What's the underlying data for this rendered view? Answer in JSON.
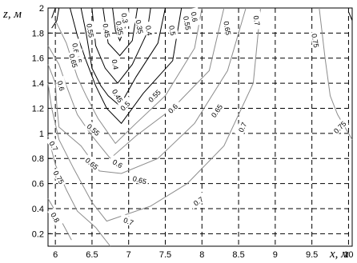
{
  "chart_data": {
    "type": "contour",
    "xlabel": "x, м",
    "ylabel": "z, м",
    "xlim": [
      5.9,
      10.05
    ],
    "ylim": [
      0.1,
      2.0
    ],
    "xticks": [
      "6",
      "6.5",
      "7",
      "7.5",
      "8",
      "8.5",
      "9",
      "9.5",
      "10"
    ],
    "yticks": [
      "0.2",
      "0.4",
      "0.6",
      "0.8",
      "1",
      "1.2",
      "1.4",
      "1.6",
      "1.8",
      "2"
    ],
    "grid": "dashed",
    "contours": [
      {
        "level": "0.3",
        "color": "black",
        "points": [
          [
            6.78,
            2.0
          ],
          [
            6.82,
            1.82
          ],
          [
            6.88,
            1.74
          ],
          [
            6.96,
            1.86
          ],
          [
            7.0,
            2.0
          ]
        ]
      },
      {
        "level": "0.35",
        "color": "black",
        "points": [
          [
            6.65,
            2.0
          ],
          [
            6.72,
            1.72
          ],
          [
            6.88,
            1.62
          ],
          [
            7.05,
            1.74
          ],
          [
            7.12,
            2.0
          ]
        ]
      },
      {
        "level": "0.4",
        "color": "black",
        "points": [
          [
            6.5,
            2.0
          ],
          [
            6.55,
            1.7
          ],
          [
            6.68,
            1.52
          ],
          [
            6.85,
            1.4
          ],
          [
            7.05,
            1.55
          ],
          [
            7.25,
            1.8
          ],
          [
            7.3,
            2.0
          ]
        ]
      },
      {
        "level": "0.45",
        "color": "black",
        "points": [
          [
            6.35,
            2.0
          ],
          [
            6.42,
            1.8
          ],
          [
            6.5,
            1.52
          ],
          [
            6.62,
            1.38
          ],
          [
            6.72,
            1.3
          ],
          [
            6.88,
            1.22
          ],
          [
            7.1,
            1.45
          ],
          [
            7.4,
            1.72
          ],
          [
            7.5,
            2.0
          ]
        ]
      },
      {
        "level": "0.5",
        "color": "black",
        "points": [
          [
            6.2,
            2.0
          ],
          [
            6.3,
            1.78
          ],
          [
            6.42,
            1.58
          ],
          [
            6.55,
            1.38
          ],
          [
            6.7,
            1.2
          ],
          [
            6.9,
            1.08
          ],
          [
            7.2,
            1.32
          ],
          [
            7.6,
            1.58
          ],
          [
            7.72,
            2.0
          ]
        ]
      },
      {
        "level": "0.55",
        "color": "gray",
        "points": [
          [
            6.0,
            1.9
          ],
          [
            6.15,
            1.72
          ],
          [
            6.3,
            1.45
          ],
          [
            6.42,
            1.3
          ],
          [
            6.58,
            1.12
          ],
          [
            6.82,
            0.92
          ],
          [
            7.1,
            1.08
          ],
          [
            7.5,
            1.3
          ],
          [
            7.9,
            1.68
          ],
          [
            8.0,
            2.0
          ]
        ]
      },
      {
        "level": "0.6",
        "color": "gray",
        "points": [
          [
            5.9,
            1.7
          ],
          [
            6.05,
            1.55
          ],
          [
            6.15,
            1.38
          ],
          [
            6.3,
            1.15
          ],
          [
            6.5,
            0.98
          ],
          [
            6.75,
            0.8
          ],
          [
            7.1,
            0.98
          ],
          [
            7.6,
            1.2
          ],
          [
            8.1,
            1.5
          ],
          [
            8.3,
            2.0
          ]
        ]
      },
      {
        "level": "0.65",
        "color": "gray",
        "points": [
          [
            5.9,
            1.55
          ],
          [
            6.0,
            1.4
          ],
          [
            6.02,
            1.22
          ],
          [
            6.05,
            1.05
          ],
          [
            6.35,
            0.9
          ],
          [
            6.6,
            0.7
          ],
          [
            6.9,
            0.68
          ],
          [
            7.4,
            0.8
          ],
          [
            7.9,
            1.08
          ],
          [
            8.35,
            1.5
          ],
          [
            8.6,
            2.0
          ]
        ]
      },
      {
        "level": "0.7",
        "color": "gray",
        "points": [
          [
            5.9,
            1.4
          ],
          [
            5.95,
            1.2
          ],
          [
            6.05,
            0.95
          ],
          [
            6.25,
            0.72
          ],
          [
            6.5,
            0.45
          ],
          [
            6.7,
            0.3
          ],
          [
            7.3,
            0.42
          ],
          [
            7.8,
            0.6
          ],
          [
            8.3,
            0.9
          ],
          [
            8.7,
            1.4
          ],
          [
            8.8,
            2.0
          ]
        ]
      },
      {
        "level": "0.75",
        "color": "gray",
        "points": [
          [
            5.9,
            0.98
          ],
          [
            6.0,
            0.75
          ],
          [
            6.15,
            0.55
          ],
          [
            6.3,
            0.38
          ],
          [
            6.55,
            0.25
          ],
          [
            6.75,
            0.1
          ]
        ]
      },
      {
        "level": "0.75",
        "color": "gray",
        "points": [
          [
            9.6,
            2.0
          ],
          [
            9.68,
            1.6
          ],
          [
            9.75,
            1.3
          ],
          [
            9.85,
            1.15
          ],
          [
            10.05,
            0.95
          ]
        ]
      },
      {
        "level": "0.8",
        "color": "gray",
        "points": [
          [
            5.9,
            0.48
          ],
          [
            6.0,
            0.38
          ],
          [
            6.1,
            0.28
          ],
          [
            6.22,
            0.15
          ]
        ]
      },
      {
        "level": "0.8",
        "color": "black",
        "points": [
          [
            6.05,
            2.0
          ],
          [
            6.02,
            1.9
          ],
          [
            5.95,
            1.84
          ]
        ]
      },
      {
        "level": "0.8",
        "color": "black",
        "points": [
          [
            6.0,
            2.0
          ],
          [
            5.95,
            1.92
          ]
        ]
      },
      {
        "level": "",
        "color": "black",
        "points": [
          [
            10.0,
            1.97
          ],
          [
            10.05,
            1.9
          ]
        ]
      }
    ],
    "labels": [
      {
        "text": "0.55",
        "x": 6.48,
        "y": 1.82,
        "rot": 80
      },
      {
        "text": "0.45",
        "x": 6.7,
        "y": 1.82,
        "rot": 80
      },
      {
        "text": "0.35",
        "x": 7.15,
        "y": 1.85,
        "rot": 80
      },
      {
        "text": "0.35",
        "x": 6.88,
        "y": 1.84,
        "rot": 80
      },
      {
        "text": "0.3",
        "x": 6.95,
        "y": 1.92,
        "rot": 80
      },
      {
        "text": "0.4",
        "x": 7.28,
        "y": 1.82,
        "rot": 80
      },
      {
        "text": "0.5",
        "x": 7.6,
        "y": 1.82,
        "rot": 80
      },
      {
        "text": "0.55",
        "x": 7.8,
        "y": 1.88,
        "rot": 80
      },
      {
        "text": "0.6",
        "x": 7.9,
        "y": 1.93,
        "rot": 80
      },
      {
        "text": "0.65",
        "x": 8.35,
        "y": 1.84,
        "rot": 80
      },
      {
        "text": "0.7",
        "x": 8.75,
        "y": 1.9,
        "rot": 80
      },
      {
        "text": "0.75",
        "x": 9.55,
        "y": 1.74,
        "rot": 80
      },
      {
        "text": "0.5",
        "x": 6.32,
        "y": 1.6,
        "rot": 80
      },
      {
        "text": "0.4",
        "x": 6.82,
        "y": 1.55,
        "rot": 80
      },
      {
        "text": "0.6",
        "x": 6.28,
        "y": 1.68,
        "rot": 80
      },
      {
        "text": "0.65",
        "x": 6.25,
        "y": 1.58,
        "rot": 75
      },
      {
        "text": "0.45",
        "x": 6.85,
        "y": 1.3,
        "rot": 60
      },
      {
        "text": "0.5",
        "x": 6.95,
        "y": 1.22,
        "rot": -45
      },
      {
        "text": "0.55",
        "x": 7.35,
        "y": 1.3,
        "rot": -45
      },
      {
        "text": "0.6",
        "x": 7.6,
        "y": 1.2,
        "rot": -45
      },
      {
        "text": "0.65",
        "x": 8.2,
        "y": 1.18,
        "rot": -55
      },
      {
        "text": "0.7",
        "x": 8.55,
        "y": 1.05,
        "rot": -65
      },
      {
        "text": "0.75",
        "x": 9.88,
        "y": 1.05,
        "rot": -45
      },
      {
        "text": "0.6",
        "x": 6.08,
        "y": 1.38,
        "rot": 75
      },
      {
        "text": "0.55",
        "x": 6.52,
        "y": 1.03,
        "rot": 40
      },
      {
        "text": "0.65",
        "x": 6.5,
        "y": 0.76,
        "rot": 40
      },
      {
        "text": "0.7",
        "x": 5.98,
        "y": 0.9,
        "rot": 60
      },
      {
        "text": "0.6",
        "x": 6.85,
        "y": 0.76,
        "rot": 30
      },
      {
        "text": "0.65",
        "x": 7.15,
        "y": 0.63,
        "rot": 15
      },
      {
        "text": "0.75",
        "x": 6.05,
        "y": 0.65,
        "rot": 60
      },
      {
        "text": "0.7",
        "x": 7.0,
        "y": 0.3,
        "rot": 20
      },
      {
        "text": "0.7",
        "x": 7.95,
        "y": 0.46,
        "rot": -35
      },
      {
        "text": "0.8",
        "x": 6.0,
        "y": 0.33,
        "rot": 60
      }
    ]
  }
}
